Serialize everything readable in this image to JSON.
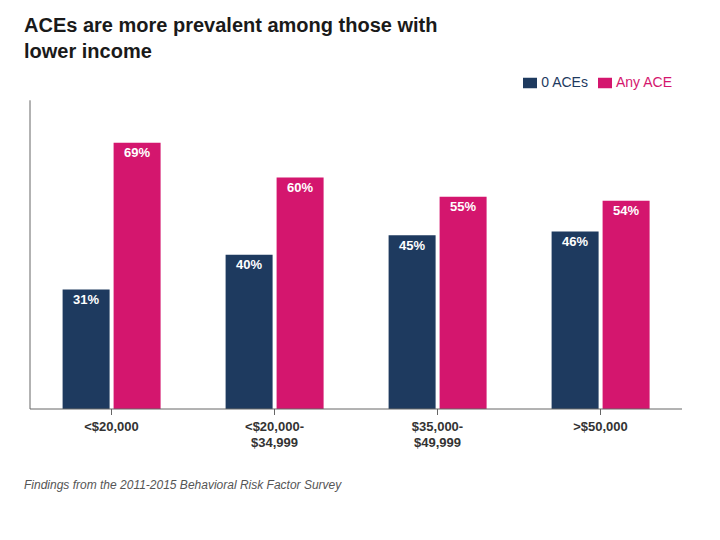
{
  "chart_data": {
    "type": "bar",
    "title": "ACEs are more prevalent among those with",
    "subtitle": "lower income",
    "categories": [
      "<$20,000",
      "<$20,000-\n$34,999",
      "$35,000-\n$49,999",
      ">$50,000"
    ],
    "series": [
      {
        "name": "0 ACEs",
        "color": "#1e3a5f",
        "values": [
          31,
          40,
          45,
          46
        ],
        "value_labels": [
          "31%",
          "40%",
          "45%",
          "46%"
        ]
      },
      {
        "name": "Any ACE",
        "color": "#d4166e",
        "values": [
          69,
          60,
          55,
          54
        ],
        "value_labels": [
          "69%",
          "60%",
          "55%",
          "54%"
        ]
      }
    ],
    "ylim": [
      0,
      80
    ],
    "data_labels": true,
    "tick_labels": "x",
    "grid": false,
    "legend": "top-right",
    "annotations": [
      "Findings from the 2011-2015 Behavioral Risk Factor Survey"
    ]
  }
}
